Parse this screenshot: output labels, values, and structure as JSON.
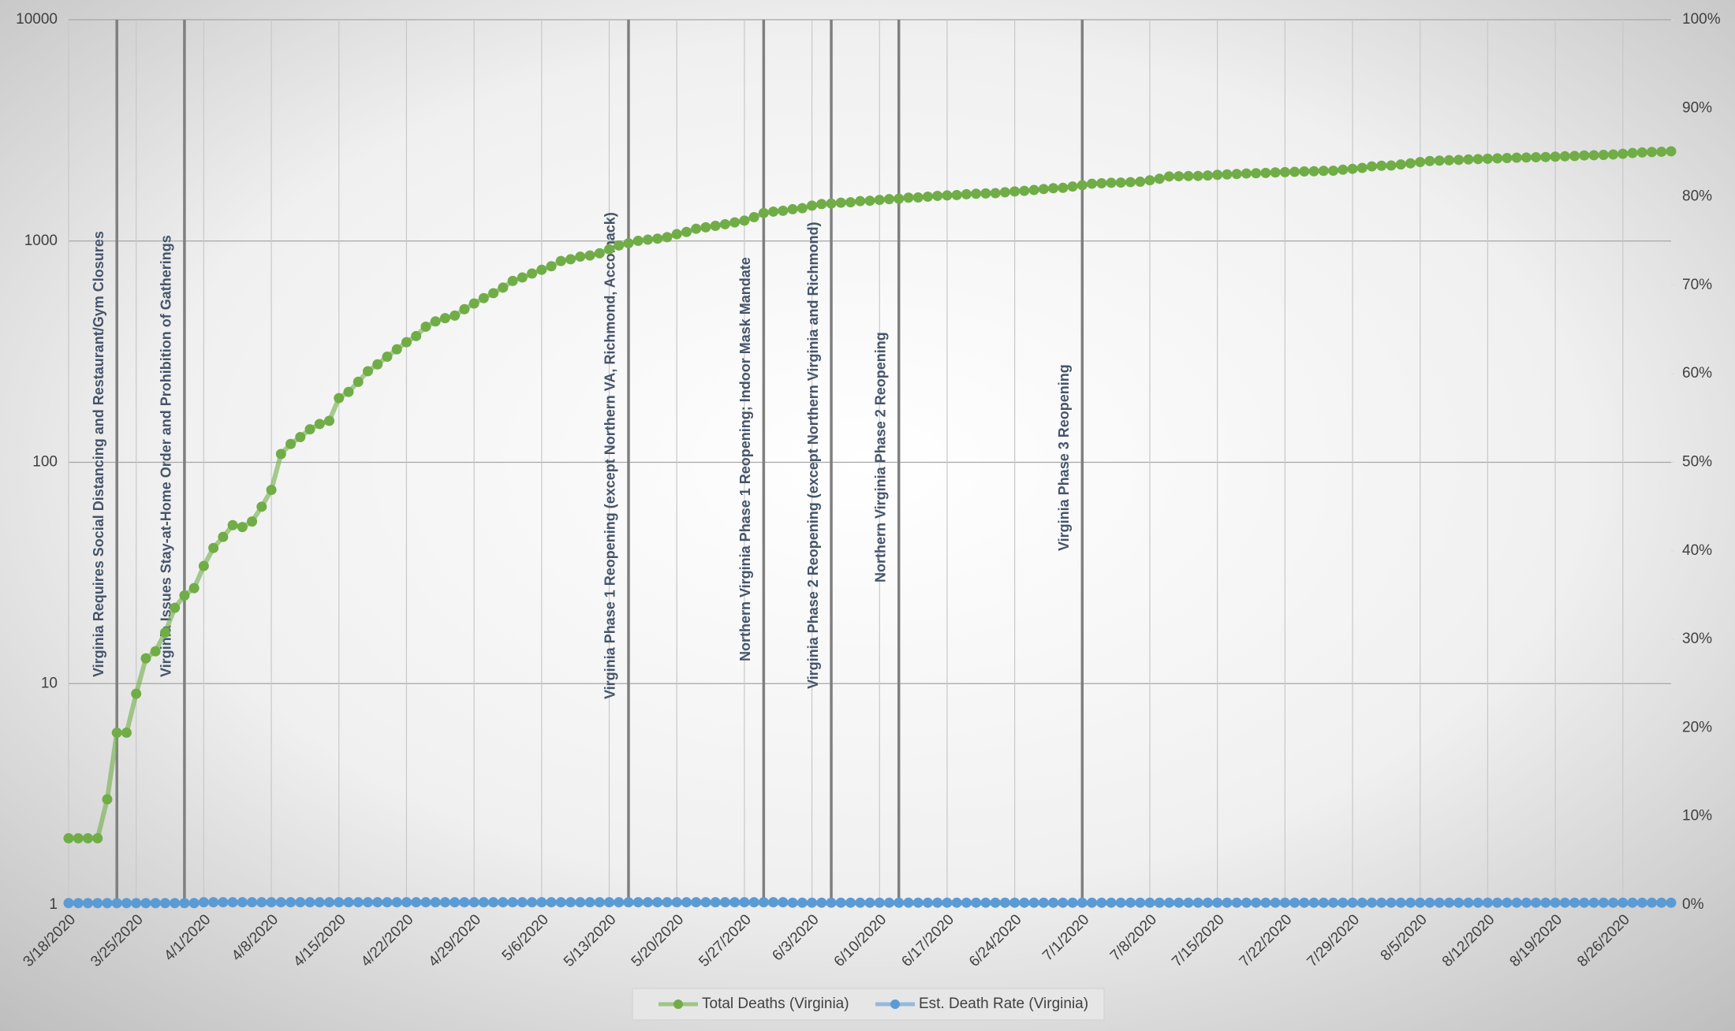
{
  "chart_data": {
    "type": "line",
    "yscale": "log",
    "ylim": [
      1,
      10000
    ],
    "yticks": [
      1,
      10,
      100,
      1000,
      10000
    ],
    "y2lim": [
      0,
      100
    ],
    "y2ticks": [
      {
        "value": 0,
        "label": "0%"
      },
      {
        "value": 10,
        "label": "10%"
      },
      {
        "value": 20,
        "label": "20%"
      },
      {
        "value": 30,
        "label": "30%"
      },
      {
        "value": 40,
        "label": "40%"
      },
      {
        "value": 50,
        "label": "50%"
      },
      {
        "value": 60,
        "label": "60%"
      },
      {
        "value": 70,
        "label": "70%"
      },
      {
        "value": 80,
        "label": "80%"
      },
      {
        "value": 90,
        "label": "90%"
      },
      {
        "value": 100,
        "label": "100%"
      }
    ],
    "grid": true,
    "legend": "bottom",
    "categories": [
      "3/18/2020",
      null,
      null,
      null,
      null,
      null,
      null,
      "3/25/2020",
      null,
      null,
      null,
      null,
      null,
      null,
      "4/1/2020",
      null,
      null,
      null,
      null,
      null,
      null,
      "4/8/2020",
      null,
      null,
      null,
      null,
      null,
      null,
      "4/15/2020",
      null,
      null,
      null,
      null,
      null,
      null,
      "4/22/2020",
      null,
      null,
      null,
      null,
      null,
      null,
      "4/29/2020",
      null,
      null,
      null,
      null,
      null,
      null,
      "5/6/2020",
      null,
      null,
      null,
      null,
      null,
      null,
      "5/13/2020",
      null,
      null,
      null,
      null,
      null,
      null,
      "5/20/2020",
      null,
      null,
      null,
      null,
      null,
      null,
      "5/27/2020",
      null,
      null,
      null,
      null,
      null,
      null,
      "6/3/2020",
      null,
      null,
      null,
      null,
      null,
      null,
      "6/10/2020",
      null,
      null,
      null,
      null,
      null,
      null,
      "6/17/2020",
      null,
      null,
      null,
      null,
      null,
      null,
      "6/24/2020",
      null,
      null,
      null,
      null,
      null,
      null,
      "7/1/2020",
      null,
      null,
      null,
      null,
      null,
      null,
      "7/8/2020",
      null,
      null,
      null,
      null,
      null,
      null,
      "7/15/2020",
      null,
      null,
      null,
      null,
      null,
      null,
      "7/22/2020",
      null,
      null,
      null,
      null,
      null,
      null,
      "7/29/2020",
      null,
      null,
      null,
      null,
      null,
      null,
      "8/5/2020",
      null,
      null,
      null,
      null,
      null,
      null,
      "8/12/2020",
      null,
      null,
      null,
      null,
      null,
      null,
      "8/19/2020",
      null,
      null,
      null,
      null,
      null,
      null,
      "8/26/2020",
      null,
      null,
      null,
      null,
      null
    ],
    "series": [
      {
        "name": "Total Deaths (Virginia)",
        "color": "#70ad47",
        "values": [
          2,
          2,
          2,
          2,
          3,
          6,
          6,
          9,
          13,
          14,
          17,
          22,
          25,
          27,
          34,
          41,
          46,
          52,
          51,
          54,
          63,
          75,
          109,
          121,
          130,
          141,
          149,
          154,
          195,
          208,
          231,
          258,
          277,
          300,
          324,
          349,
          372,
          410,
          433,
          448,
          460,
          492,
          522,
          552,
          581,
          616,
          660,
          684,
          713,
          741,
          769,
          812,
          827,
          850,
          860,
          880,
          917,
          955,
          977,
          1002,
          1014,
          1025,
          1041,
          1074,
          1099,
          1136,
          1153,
          1171,
          1191,
          1214,
          1236,
          1281,
          1338,
          1358,
          1370,
          1392,
          1407,
          1445,
          1469,
          1477,
          1490,
          1496,
          1514,
          1520,
          1534,
          1546,
          1552,
          1570,
          1573,
          1586,
          1600,
          1607,
          1613,
          1627,
          1635,
          1641,
          1645,
          1661,
          1675,
          1685,
          1700,
          1717,
          1732,
          1739,
          1763,
          1787,
          1815,
          1824,
          1832,
          1836,
          1845,
          1853,
          1881,
          1911,
          1958,
          1962,
          1966,
          1968,
          1977,
          1992,
          2000,
          2008,
          2019,
          2024,
          2031,
          2041,
          2048,
          2054,
          2062,
          2067,
          2075,
          2078,
          2100,
          2119,
          2140,
          2174,
          2189,
          2192,
          2218,
          2244,
          2274,
          2299,
          2309,
          2317,
          2326,
          2336,
          2345,
          2354,
          2363,
          2370,
          2381,
          2384,
          2391,
          2396,
          2405,
          2414,
          2422,
          2436,
          2441,
          2449,
          2461,
          2477,
          2497,
          2513,
          2524,
          2530,
          2543
        ]
      },
      {
        "name": "Est. Death Rate (Virginia)",
        "color": "#5b9bd5",
        "axis": "y2",
        "values": [
          0.2,
          0.2,
          0.2,
          0.2,
          0.2,
          0.2,
          0.2,
          0.2,
          0.2,
          0.2,
          0.2,
          0.2,
          0.2,
          0.2,
          0.3,
          0.3,
          0.3,
          0.3,
          0.3,
          0.3,
          0.3,
          0.3,
          0.3,
          0.3,
          0.3,
          0.3,
          0.3,
          0.3,
          0.3,
          0.3,
          0.3,
          0.3,
          0.3,
          0.3,
          0.3,
          0.3,
          0.3,
          0.3,
          0.3,
          0.3,
          0.3,
          0.3,
          0.3,
          0.3,
          0.3,
          0.3,
          0.3,
          0.3,
          0.3,
          0.3,
          0.3,
          0.3,
          0.3,
          0.3,
          0.3,
          0.3,
          0.3,
          0.3,
          0.3,
          0.3,
          0.3,
          0.3,
          0.3,
          0.3,
          0.3,
          0.3,
          0.3,
          0.3,
          0.3,
          0.3,
          0.3,
          0.3,
          0.3,
          0.3,
          0.3,
          0.25,
          0.25,
          0.25,
          0.25,
          0.25,
          0.25,
          0.25,
          0.25,
          0.25,
          0.25,
          0.25,
          0.25,
          0.25,
          0.25,
          0.25,
          0.25,
          0.25,
          0.25,
          0.25,
          0.25,
          0.25,
          0.25,
          0.25,
          0.25,
          0.25,
          0.25,
          0.25,
          0.25,
          0.25,
          0.25,
          0.25,
          0.25,
          0.25,
          0.25,
          0.25,
          0.25,
          0.25,
          0.25,
          0.25,
          0.25,
          0.25,
          0.25,
          0.25,
          0.25,
          0.25,
          0.25,
          0.25,
          0.25,
          0.25,
          0.25,
          0.25,
          0.25,
          0.25,
          0.25,
          0.25,
          0.25,
          0.25,
          0.25,
          0.25,
          0.25,
          0.25,
          0.25,
          0.25,
          0.25,
          0.25,
          0.25,
          0.25,
          0.25,
          0.25,
          0.25,
          0.25,
          0.25,
          0.25,
          0.25,
          0.25,
          0.25,
          0.25,
          0.25,
          0.25,
          0.25,
          0.25,
          0.25,
          0.25,
          0.25,
          0.25,
          0.25,
          0.25,
          0.25,
          0.25,
          0.25,
          0.25,
          0.25
        ]
      }
    ],
    "annotations": [
      {
        "date": "3/23/2020",
        "text": "Virginia Requires Social Distancing and Restaurant/Gym Closures"
      },
      {
        "date": "3/30/2020",
        "text": "Virginia Issues Stay-at-Home Order and Prohibition of Gatherings"
      },
      {
        "date": "5/15/2020",
        "text": "Virginia Phase 1 Reopening (except Northern VA, Richmond, Accomack)"
      },
      {
        "date": "5/29/2020",
        "text": "Northern Virginia Phase 1 Reopening; Indoor Mask Mandate"
      },
      {
        "date": "6/5/2020",
        "text": "Virginia Phase 2 Reopening (except Northern Virginia and Richmond)"
      },
      {
        "date": "6/12/2020",
        "text": "Northern Virginia Phase 2 Reopening"
      },
      {
        "date": "7/1/2020",
        "text": "Virginia Phase 3 Reopening"
      }
    ]
  }
}
